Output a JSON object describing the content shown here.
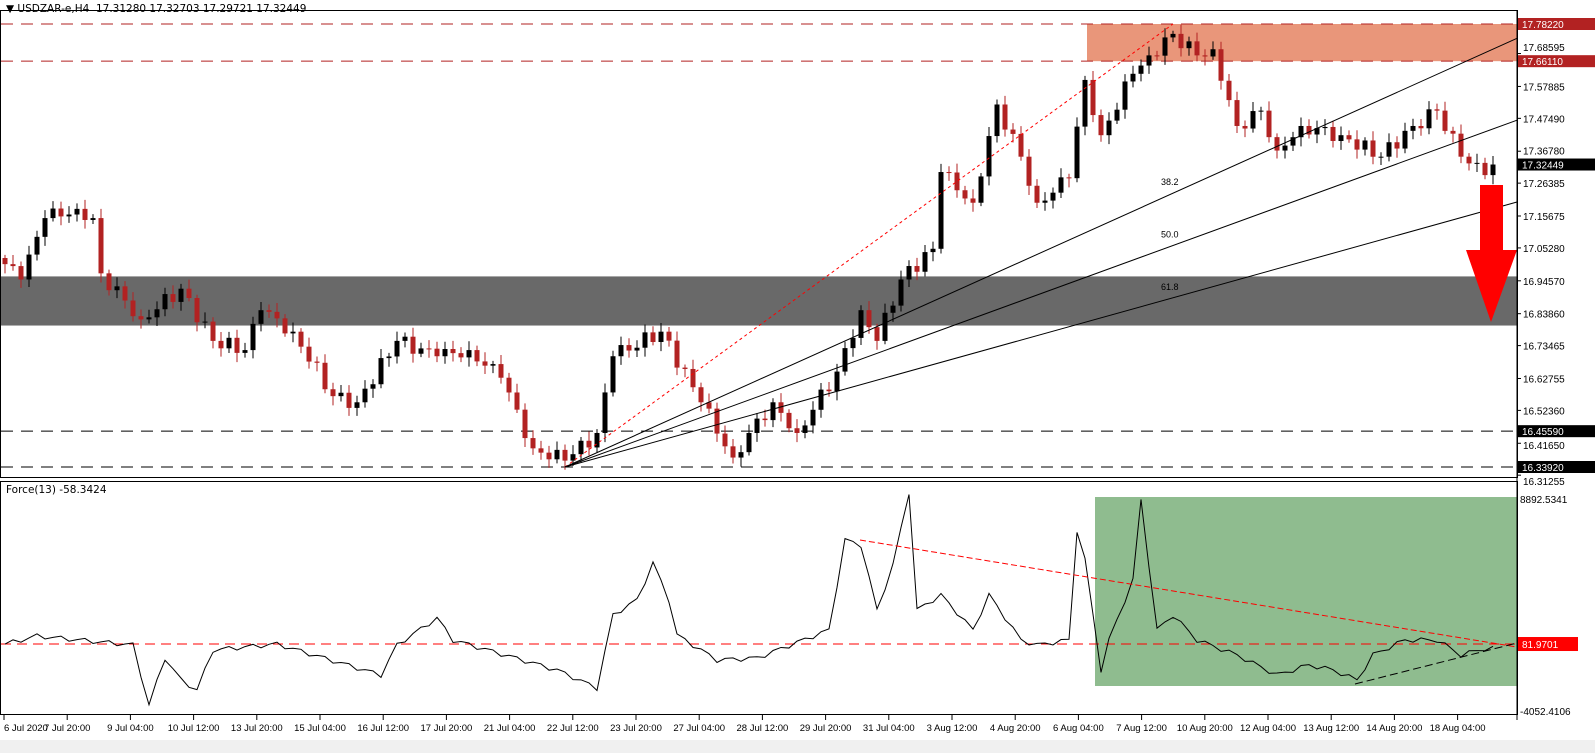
{
  "header": {
    "symbol": "USDZAR-e,H4",
    "ohlc": "17.31280 17.32703 17.29721 17.32449",
    "marker": "▼"
  },
  "indicator": {
    "label": "Force(13) -58.3424"
  },
  "colors": {
    "bull": "#000000",
    "bear": "#b22222",
    "resistance_zone": "#e9967a",
    "support_zone": "#696969",
    "force_zone": "#8fbc8f",
    "arrow": "#ff0000",
    "level_red": "#b22222",
    "current": "#000000"
  },
  "chart_data": [
    {
      "type": "candlestick",
      "title": "USDZAR-e,H4",
      "ylim": [
        16.31255,
        17.7822
      ],
      "y_ticks": [
        "17.68595",
        "17.57885",
        "17.47490",
        "17.36780",
        "17.26385",
        "17.15675",
        "17.05280",
        "16.94570",
        "16.83860",
        "16.73465",
        "16.62755",
        "16.52360",
        "16.41650",
        "16.31255"
      ],
      "levels": [
        {
          "value": 17.7822,
          "label": "17.78220",
          "style": "red-dashed"
        },
        {
          "value": 17.6611,
          "label": "17.66110",
          "style": "red-dashed"
        },
        {
          "value": 16.4559,
          "label": "16.45590",
          "style": "black-dashed"
        },
        {
          "value": 16.3392,
          "label": "16.33920",
          "style": "black-dashed"
        }
      ],
      "current_price": {
        "value": 17.32449,
        "label": "17.32449"
      },
      "resistance_zone": [
        17.6611,
        17.7822
      ],
      "support_zone": [
        16.8,
        16.96
      ],
      "fib_fan": {
        "from": {
          "bar": 70,
          "price": 16.3392
        },
        "to": {
          "bar": 146,
          "price": 17.7822
        },
        "levels": [
          "38.2",
          "50.0",
          "61.8"
        ]
      },
      "x_ticks": [
        "6 Jul 2020",
        "7 Jul 20:00",
        "9 Jul 04:00",
        "10 Jul 12:00",
        "13 Jul 20:00",
        "15 Jul 04:00",
        "16 Jul 12:00",
        "17 Jul 20:00",
        "21 Jul 04:00",
        "22 Jul 12:00",
        "23 Jul 20:00",
        "27 Jul 04:00",
        "28 Jul 12:00",
        "29 Jul 20:00",
        "31 Jul 04:00",
        "3 Aug 12:00",
        "4 Aug 20:00",
        "6 Aug 04:00",
        "7 Aug 12:00",
        "10 Aug 20:00",
        "12 Aug 04:00",
        "13 Aug 12:00",
        "14 Aug 20:00",
        "18 Aug 04:00"
      ],
      "close_waypoints": [
        [
          0,
          17.0
        ],
        [
          2,
          16.95
        ],
        [
          5,
          17.15
        ],
        [
          9,
          17.18
        ],
        [
          11,
          17.15
        ],
        [
          12,
          16.97
        ],
        [
          17,
          16.82
        ],
        [
          22,
          16.92
        ],
        [
          26,
          16.75
        ],
        [
          30,
          16.72
        ],
        [
          32,
          16.85
        ],
        [
          36,
          16.78
        ],
        [
          41,
          16.57
        ],
        [
          44,
          16.55
        ],
        [
          49,
          16.75
        ],
        [
          54,
          16.7
        ],
        [
          58,
          16.72
        ],
        [
          62,
          16.63
        ],
        [
          66,
          16.4
        ],
        [
          70,
          16.36
        ],
        [
          74,
          16.45
        ],
        [
          76,
          16.7
        ],
        [
          82,
          16.78
        ],
        [
          87,
          16.55
        ],
        [
          91,
          16.37
        ],
        [
          93,
          16.45
        ],
        [
          96,
          16.55
        ],
        [
          99,
          16.45
        ],
        [
          104,
          16.65
        ],
        [
          107,
          16.85
        ],
        [
          109,
          16.75
        ],
        [
          112,
          16.95
        ],
        [
          116,
          17.05
        ],
        [
          117,
          17.3
        ],
        [
          121,
          17.2
        ],
        [
          124,
          17.52
        ],
        [
          127,
          17.35
        ],
        [
          129,
          17.2
        ],
        [
          133,
          17.28
        ],
        [
          135,
          17.6
        ],
        [
          137,
          17.42
        ],
        [
          141,
          17.62
        ],
        [
          143,
          17.68
        ],
        [
          146,
          17.75
        ],
        [
          149,
          17.68
        ],
        [
          151,
          17.7
        ],
        [
          154,
          17.45
        ],
        [
          157,
          17.5
        ],
        [
          159,
          17.37
        ],
        [
          162,
          17.45
        ],
        [
          167,
          17.42
        ],
        [
          172,
          17.35
        ],
        [
          176,
          17.45
        ],
        [
          179,
          17.5
        ],
        [
          182,
          17.35
        ],
        [
          185,
          17.29
        ],
        [
          186,
          17.32449
        ]
      ]
    },
    {
      "type": "line",
      "title": "Force(13)",
      "ylim": [
        -4052.4106,
        8892.5341
      ],
      "y_ticks": [
        "8892.5341",
        "-4052.4106"
      ],
      "level": {
        "value": 81.9701,
        "label": "81.9701"
      },
      "waypoints": [
        [
          0,
          82
        ],
        [
          4,
          563
        ],
        [
          16,
          23
        ],
        [
          18,
          -3573
        ],
        [
          20,
          -756
        ],
        [
          22,
          -2075
        ],
        [
          24,
          -2674
        ],
        [
          26,
          -277
        ],
        [
          34,
          82
        ],
        [
          47,
          -1775
        ],
        [
          49,
          23
        ],
        [
          54,
          1641
        ],
        [
          56,
          323
        ],
        [
          69,
          -1475
        ],
        [
          74,
          -2554
        ],
        [
          76,
          1821
        ],
        [
          79,
          2720
        ],
        [
          81,
          4937
        ],
        [
          83,
          2720
        ],
        [
          84,
          622
        ],
        [
          89,
          -876
        ],
        [
          94,
          -756
        ],
        [
          103,
          922
        ],
        [
          105,
          6316
        ],
        [
          107,
          6016
        ],
        [
          109,
          2121
        ],
        [
          111,
          4817
        ],
        [
          113,
          9192
        ],
        [
          114,
          2121
        ],
        [
          117,
          3020
        ],
        [
          121,
          922
        ],
        [
          123,
          3020
        ],
        [
          127,
          323
        ],
        [
          129,
          23
        ],
        [
          133,
          323
        ],
        [
          134,
          6915
        ],
        [
          135,
          5117
        ],
        [
          137,
          -1475
        ],
        [
          138,
          323
        ],
        [
          141,
          3918
        ],
        [
          142,
          8713
        ],
        [
          144,
          922
        ],
        [
          146,
          1821
        ],
        [
          149,
          323
        ],
        [
          154,
          -576
        ],
        [
          159,
          -1775
        ],
        [
          163,
          -1175
        ],
        [
          166,
          -1475
        ],
        [
          169,
          -2075
        ],
        [
          171,
          -576
        ],
        [
          175,
          323
        ],
        [
          179,
          323
        ],
        [
          182,
          -576
        ],
        [
          186,
          -58.3424
        ]
      ]
    }
  ]
}
